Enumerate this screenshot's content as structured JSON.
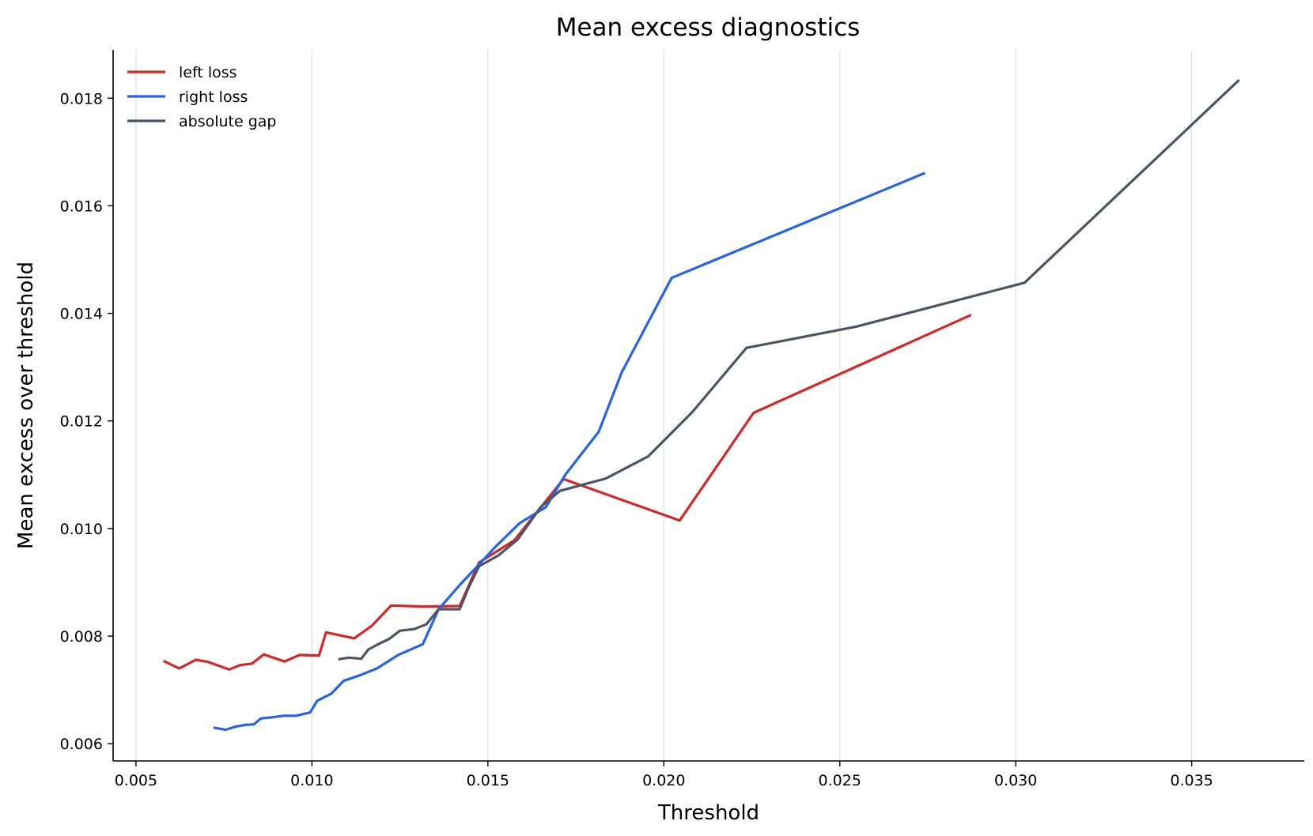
{
  "chart_data": {
    "type": "line",
    "title": "Mean excess diagnostics",
    "xlabel": "Threshold",
    "ylabel": "Mean excess over threshold",
    "xlim": [
      0.00435,
      0.0382
    ],
    "ylim": [
      0.00568,
      0.0189
    ],
    "xticks": [
      0.005,
      0.01,
      0.015,
      0.02,
      0.025,
      0.03,
      0.035
    ],
    "xtick_labels": [
      "0.005",
      "0.010",
      "0.015",
      "0.020",
      "0.025",
      "0.030",
      "0.035"
    ],
    "yticks": [
      0.006,
      0.008,
      0.01,
      0.012,
      0.014,
      0.016,
      0.018
    ],
    "ytick_labels": [
      "0.006",
      "0.008",
      "0.010",
      "0.012",
      "0.014",
      "0.016",
      "0.018"
    ],
    "grid": "vertical",
    "legend_position": "top-left",
    "series": [
      {
        "name": "left loss",
        "color": "#d62728",
        "points": [
          [
            0.00578,
            0.00754
          ],
          [
            0.00623,
            0.0074
          ],
          [
            0.0067,
            0.00756
          ],
          [
            0.00705,
            0.00752
          ],
          [
            0.00765,
            0.00738
          ],
          [
            0.00795,
            0.00746
          ],
          [
            0.0083,
            0.00749
          ],
          [
            0.00863,
            0.00766
          ],
          [
            0.00922,
            0.00753
          ],
          [
            0.00965,
            0.00765
          ],
          [
            0.0102,
            0.00764
          ],
          [
            0.0104,
            0.00807
          ],
          [
            0.0112,
            0.00796
          ],
          [
            0.0117,
            0.00819
          ],
          [
            0.01225,
            0.00857
          ],
          [
            0.0132,
            0.00855
          ],
          [
            0.0142,
            0.00856
          ],
          [
            0.01475,
            0.00937
          ],
          [
            0.01575,
            0.00978
          ],
          [
            0.01715,
            0.01092
          ],
          [
            0.02045,
            0.01015
          ],
          [
            0.02255,
            0.01215
          ],
          [
            0.02873,
            0.01397
          ]
        ]
      },
      {
        "name": "right loss",
        "color": "#2563eb",
        "points": [
          [
            0.0072,
            0.0063
          ],
          [
            0.00755,
            0.00626
          ],
          [
            0.00785,
            0.00632
          ],
          [
            0.0081,
            0.00635
          ],
          [
            0.00835,
            0.00636
          ],
          [
            0.00855,
            0.00647
          ],
          [
            0.00885,
            0.00649
          ],
          [
            0.0092,
            0.00652
          ],
          [
            0.00955,
            0.00652
          ],
          [
            0.00995,
            0.00658
          ],
          [
            0.01015,
            0.0068
          ],
          [
            0.01055,
            0.00693
          ],
          [
            0.0109,
            0.00717
          ],
          [
            0.01135,
            0.00727
          ],
          [
            0.01185,
            0.0074
          ],
          [
            0.01245,
            0.00765
          ],
          [
            0.01315,
            0.00785
          ],
          [
            0.0136,
            0.0085
          ],
          [
            0.0142,
            0.00895
          ],
          [
            0.0147,
            0.0093
          ],
          [
            0.0152,
            0.00965
          ],
          [
            0.0159,
            0.0101
          ],
          [
            0.01665,
            0.0104
          ],
          [
            0.0172,
            0.011
          ],
          [
            0.01815,
            0.0118
          ],
          [
            0.0188,
            0.0129
          ],
          [
            0.02022,
            0.01466
          ],
          [
            0.02742,
            0.01661
          ]
        ]
      },
      {
        "name": "absolute gap",
        "color": "#4b5563",
        "points": [
          [
            0.01075,
            0.00757
          ],
          [
            0.01105,
            0.0076
          ],
          [
            0.0114,
            0.00758
          ],
          [
            0.0116,
            0.00775
          ],
          [
            0.01185,
            0.00784
          ],
          [
            0.0122,
            0.00795
          ],
          [
            0.0125,
            0.0081
          ],
          [
            0.0129,
            0.00813
          ],
          [
            0.01325,
            0.00822
          ],
          [
            0.0136,
            0.0085
          ],
          [
            0.0142,
            0.0085
          ],
          [
            0.01445,
            0.0089
          ],
          [
            0.01475,
            0.0093
          ],
          [
            0.0153,
            0.0095
          ],
          [
            0.01585,
            0.0098
          ],
          [
            0.0165,
            0.0104
          ],
          [
            0.01705,
            0.0107
          ],
          [
            0.01835,
            0.01093
          ],
          [
            0.01955,
            0.01134
          ],
          [
            0.0208,
            0.01216
          ],
          [
            0.02235,
            0.01336
          ],
          [
            0.02545,
            0.01375
          ],
          [
            0.03025,
            0.01457
          ],
          [
            0.03635,
            0.01834
          ]
        ]
      }
    ]
  }
}
